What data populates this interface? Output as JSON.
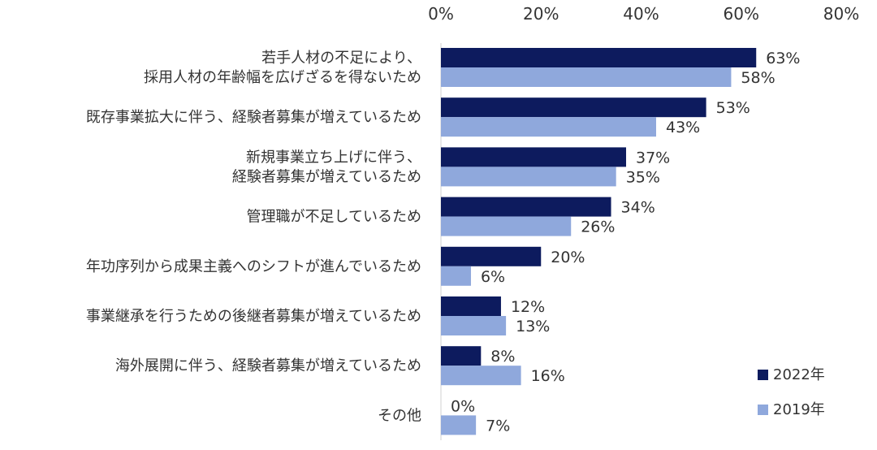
{
  "chart_data": {
    "type": "bar",
    "orientation": "horizontal",
    "title": "",
    "xlabel": "",
    "ylabel": "",
    "xlim": [
      0,
      80
    ],
    "x_ticks": [
      "0%",
      "20%",
      "40%",
      "60%",
      "80%"
    ],
    "grid": false,
    "legend_position": "bottom-right",
    "categories": [
      [
        "若手人材の不足により、",
        "採用人材の年齢幅を広げざるを得ないため"
      ],
      [
        "既存事業拡大に伴う、経験者募集が増えているため"
      ],
      [
        "新規事業立ち上げに伴う、",
        "経験者募集が増えているため"
      ],
      [
        "管理職が不足しているため"
      ],
      [
        "年功序列から成果主義へのシフトが進んでいるため"
      ],
      [
        "事業継承を行うための後継者募集が増えているため"
      ],
      [
        "海外展開に伴う、経験者募集が増えているため"
      ],
      [
        "その他"
      ]
    ],
    "series": [
      {
        "name": "2022年",
        "color": "#0d1b5e",
        "values": [
          63,
          53,
          37,
          34,
          20,
          12,
          8,
          0
        ],
        "labels": [
          "63%",
          "53%",
          "37%",
          "34%",
          "20%",
          "12%",
          "8%",
          "0%"
        ]
      },
      {
        "name": "2019年",
        "color": "#8fa8dc",
        "values": [
          58,
          43,
          35,
          26,
          6,
          13,
          16,
          7
        ],
        "labels": [
          "58%",
          "43%",
          "35%",
          "26%",
          "6%",
          "13%",
          "16%",
          "7%"
        ]
      }
    ]
  }
}
